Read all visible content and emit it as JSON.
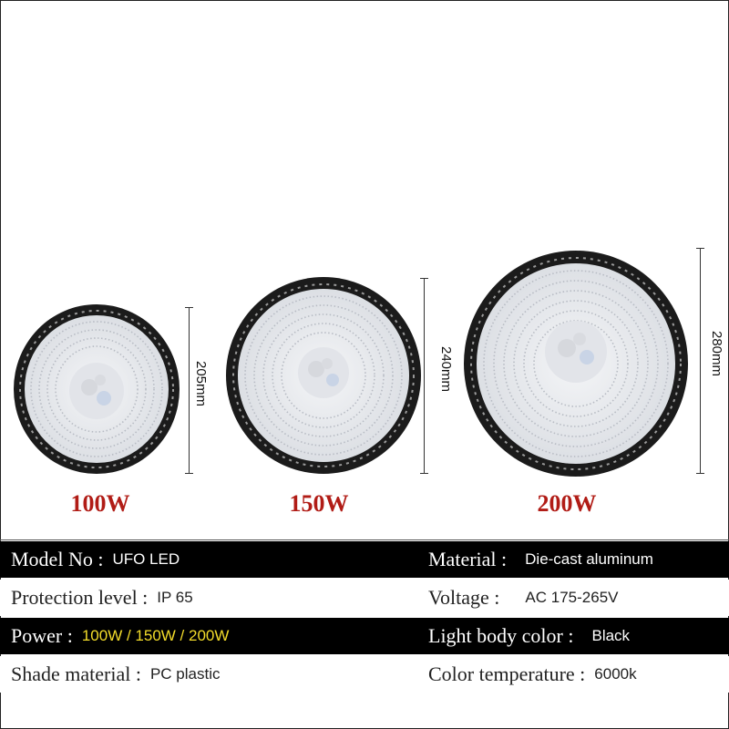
{
  "products": [
    {
      "wattage": "100W",
      "dimension": "205mm"
    },
    {
      "wattage": "150W",
      "dimension": "240mm"
    },
    {
      "wattage": "200W",
      "dimension": "280mm"
    }
  ],
  "specs": {
    "model_key": "Model No :",
    "model_val": "UFO LED",
    "material_key": "Material :",
    "material_val": "Die-cast aluminum",
    "protection_key": "Protection level :",
    "protection_val": "IP 65",
    "voltage_key": "Voltage :",
    "voltage_val": "AC 175-265V",
    "power_key": "Power :",
    "power_val": "100W / 150W / 200W",
    "body_color_key": "Light body color :",
    "body_color_val": "Black",
    "shade_key": "Shade material :",
    "shade_val": "PC plastic",
    "color_temp_key": "Color temperature :",
    "color_temp_val": "6000k"
  },
  "colors": {
    "wattage_label": "#b11c16",
    "power_value": "#f3dc2a",
    "dark_row": "#000000"
  }
}
